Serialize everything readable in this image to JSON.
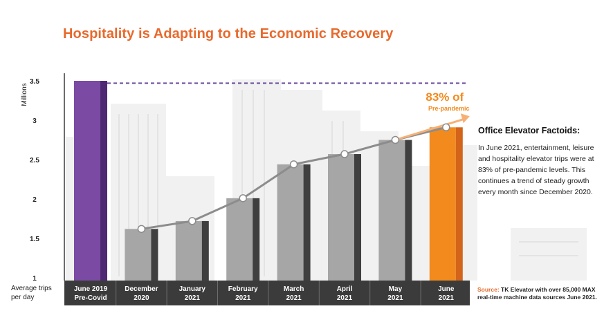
{
  "title": "Hospitality is Adapting to the Economic Recovery",
  "chart_data": {
    "type": "bar",
    "title": "Hospitality is Adapting to the Economic Recovery",
    "ylabel": "Millions",
    "xlabel": "Average trips per day",
    "ylim": [
      1,
      3.5
    ],
    "y_ticks": [
      "1",
      "1.5",
      "2",
      "2.5",
      "3",
      "3.5"
    ],
    "categories": [
      [
        "June 2019",
        "Pre-Covid"
      ],
      [
        "December",
        "2020"
      ],
      [
        "January",
        "2021"
      ],
      [
        "February",
        "2021"
      ],
      [
        "March",
        "2021"
      ],
      [
        "April",
        "2021"
      ],
      [
        "May",
        "2021"
      ],
      [
        "June",
        "2021"
      ]
    ],
    "values": [
      3.5,
      1.62,
      1.72,
      2.01,
      2.44,
      2.57,
      2.75,
      2.91
    ],
    "trend_line": true,
    "reference_line": 3.47,
    "annotation": {
      "value": "83% of",
      "label": "Pre-pandemic"
    },
    "colors": {
      "baseline": "#7b4aa3",
      "baseline_dark": "#4f2874",
      "default": "#a6a6a6",
      "default_dark": "#3f3f3f",
      "highlight": "#f28a1e",
      "highlight_dark": "#d4641a",
      "line": "#8c8c8c",
      "reference": "#6b4b9e",
      "axis_band": "#3b3b3b"
    }
  },
  "sidebar": {
    "heading": "Office Elevator Factoids:",
    "body": "In June 2021, entertainment, leisure and hospitality elevator trips were at 83% of pre-pandemic levels. This continues a trend of steady growth every month since December 2020."
  },
  "source": {
    "label": "Source:",
    "text": "TK Elevator with over 85,000 MAX real-time machine data sources June 2021."
  }
}
